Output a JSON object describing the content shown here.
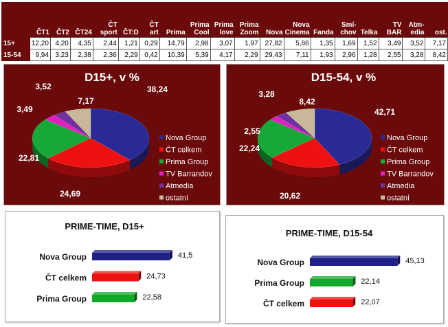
{
  "table": {
    "columns": [
      "ČT1",
      "ČT2",
      "ČT24",
      "ČT sport",
      "ČT:D",
      "ČT art",
      "Prima",
      "Prima Cool",
      "Prima love",
      "Prima Zoom",
      "Nova",
      "Nova Cinema",
      "Fanda",
      "Smí-chov",
      "Telka",
      "TV BAR",
      "Atm-edia",
      "ost."
    ],
    "rows": [
      {
        "label": "15+",
        "values": [
          "12,20",
          "4,20",
          "4,35",
          "2,44",
          "1,21",
          "0,29",
          "14,79",
          "2,98",
          "3,07",
          "1,97",
          "27,82",
          "5,86",
          "1,35",
          "1,69",
          "1,52",
          "3,49",
          "3,52",
          "7,17"
        ]
      },
      {
        "label": "15-54",
        "values": [
          "9,94",
          "3,23",
          "2,38",
          "2,36",
          "2,29",
          "0,42",
          "10,39",
          "5,39",
          "4,17",
          "2,29",
          "29,43",
          "7,11",
          "1,93",
          "2,96",
          "1,28",
          "2,55",
          "3,28",
          "8,42"
        ]
      }
    ]
  },
  "chart_data": [
    {
      "type": "pie",
      "title": "D15+, v %",
      "legend_position": "right",
      "slices": [
        {
          "name": "Nova Group",
          "value": 38.24,
          "label": "38,24",
          "color": "#2a2a96"
        },
        {
          "name": "ČT celkem",
          "value": 24.69,
          "label": "24,69",
          "color": "#ee1111"
        },
        {
          "name": "Prima Group",
          "value": 22.81,
          "label": "22,81",
          "color": "#18a838"
        },
        {
          "name": "TV Barrandov",
          "value": 3.49,
          "label": "3,49",
          "color": "#e020c0"
        },
        {
          "name": "Atmedia",
          "value": 3.52,
          "label": "3,52",
          "color": "#7030a0"
        },
        {
          "name": "ostatní",
          "value": 7.17,
          "label": "7,17",
          "color": "#c8b89a"
        }
      ]
    },
    {
      "type": "pie",
      "title": "D15-54, v %",
      "legend_position": "right",
      "slices": [
        {
          "name": "Nova Group",
          "value": 42.71,
          "label": "42,71",
          "color": "#2a2a96"
        },
        {
          "name": "ČT celkem",
          "value": 20.62,
          "label": "20,62",
          "color": "#ee1111"
        },
        {
          "name": "Prima Group",
          "value": 22.24,
          "label": "22,24",
          "color": "#18a838"
        },
        {
          "name": "TV Barrandov",
          "value": 2.55,
          "label": "2,55",
          "color": "#e020c0"
        },
        {
          "name": "Atmedia",
          "value": 3.28,
          "label": "3,28",
          "color": "#7030a0"
        },
        {
          "name": "ostatní",
          "value": 8.42,
          "label": "8,42",
          "color": "#c8b89a"
        }
      ]
    },
    {
      "type": "bar",
      "orientation": "horizontal",
      "title": "PRIME-TIME, D15+",
      "categories": [
        "Nova Group",
        "ČT celkem",
        "Prima Group"
      ],
      "values": [
        41.5,
        24.73,
        22.58
      ],
      "labels": [
        "41,5",
        "24,73",
        "22,58"
      ],
      "colors": [
        "#1f1f8a",
        "#ee1111",
        "#12a82a"
      ]
    },
    {
      "type": "bar",
      "orientation": "horizontal",
      "title": "PRIME-TIME, D15-54",
      "categories": [
        "Nova Group",
        "Prima Group",
        "ČT celkem"
      ],
      "values": [
        45.13,
        22.14,
        22.07
      ],
      "labels": [
        "45,13",
        "22,14",
        "22,07"
      ],
      "colors": [
        "#1f1f8a",
        "#12a82a",
        "#ee1111"
      ]
    }
  ]
}
